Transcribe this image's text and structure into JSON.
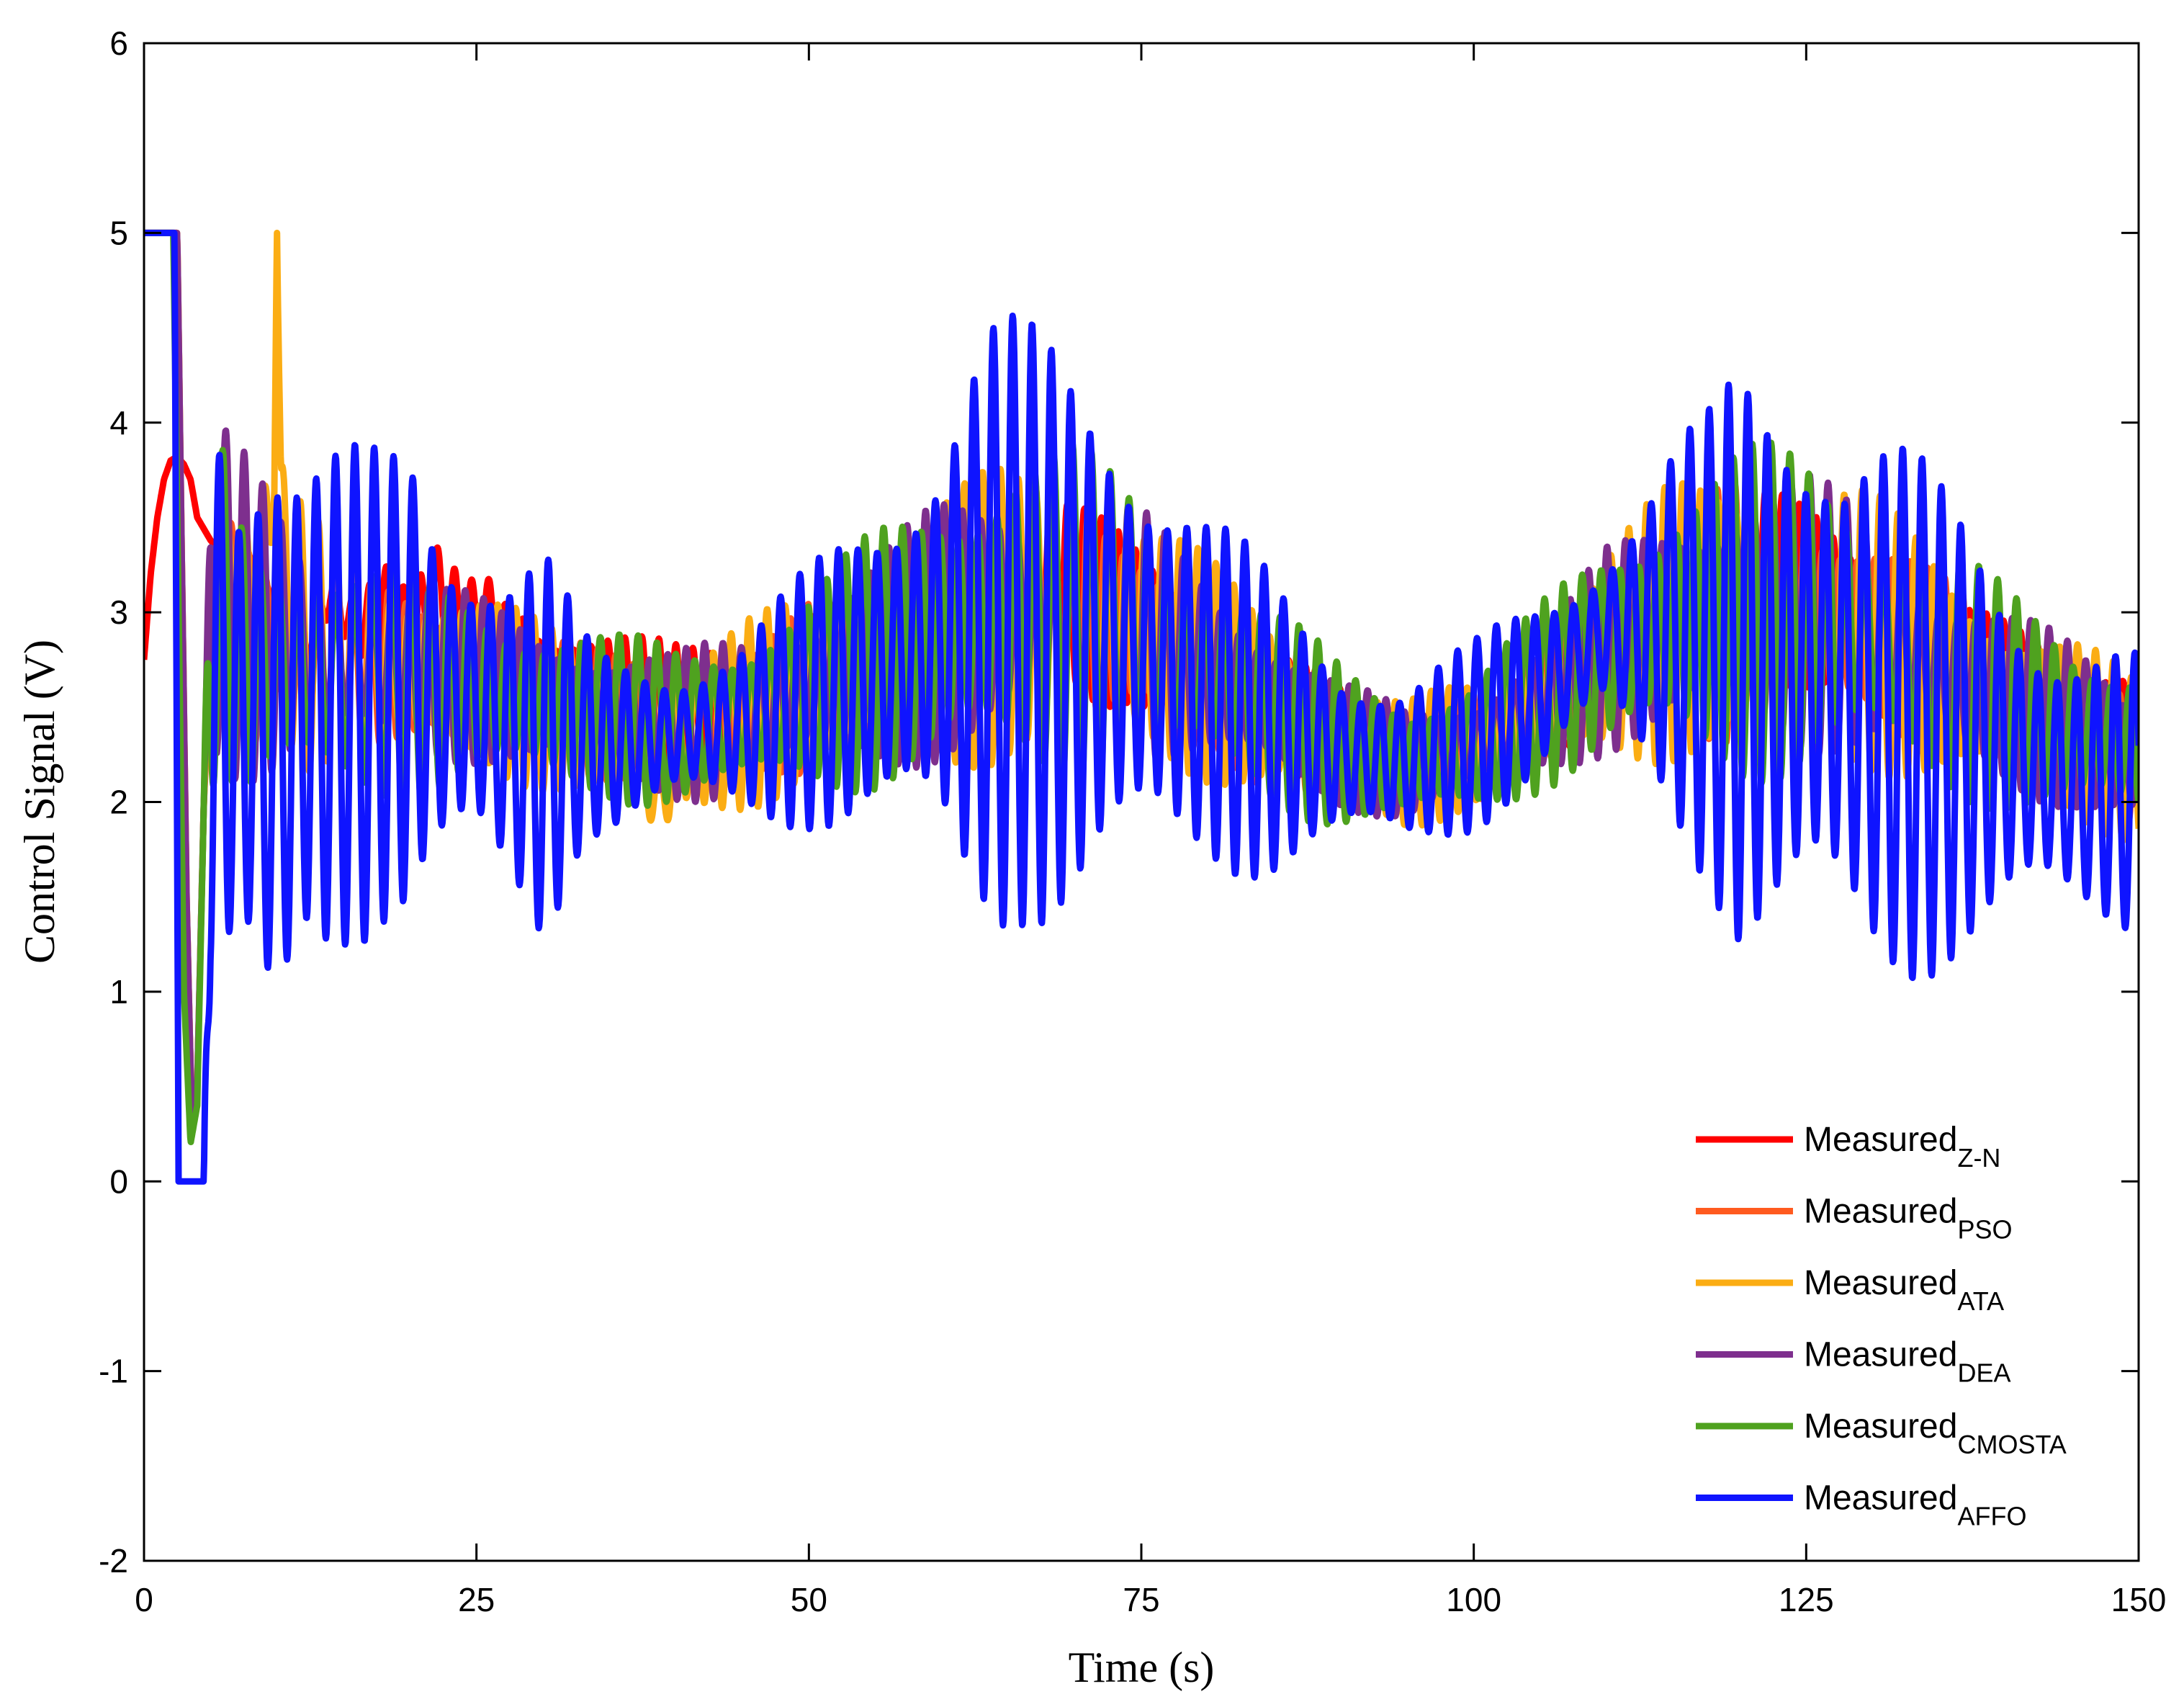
{
  "chart_data": {
    "type": "line",
    "xlabel": "Time (s)",
    "ylabel": "Control Signal (V)",
    "xlim": [
      0,
      150
    ],
    "ylim": [
      -2,
      6
    ],
    "x_ticks": [
      0,
      25,
      50,
      75,
      100,
      125,
      150
    ],
    "y_ticks": [
      -2,
      -1,
      0,
      1,
      2,
      3,
      4,
      5,
      6
    ],
    "grid": false,
    "legend_position": "bottom-right",
    "series": [
      {
        "name": "Measured",
        "subscript": "Z-N",
        "color": "#ff0000",
        "x": [
          0,
          0.5,
          1,
          1.5,
          2,
          2.5,
          3,
          3.5,
          4,
          5,
          6,
          7,
          8,
          9,
          10,
          11,
          12,
          14,
          16,
          18,
          20,
          22,
          24,
          26,
          28,
          29,
          30,
          35,
          40,
          45,
          50,
          55,
          60,
          62,
          64,
          66,
          68,
          70,
          72,
          74,
          76,
          80,
          85,
          90,
          95,
          100,
          105,
          110,
          115,
          120,
          122,
          124,
          126,
          128,
          130,
          135,
          140,
          145,
          150
        ],
        "y": [
          2.75,
          3.2,
          3.5,
          3.7,
          3.8,
          3.82,
          3.78,
          3.7,
          3.5,
          3.38,
          3.3,
          3.32,
          3.25,
          3.1,
          2.95,
          3.05,
          2.8,
          3.1,
          2.9,
          3.05,
          2.85,
          3.1,
          2.95,
          3.0,
          2.85,
          2.9,
          2.7,
          2.6,
          2.5,
          2.55,
          2.7,
          2.8,
          3.0,
          3.1,
          3.2,
          3.25,
          3.2,
          3.1,
          3.0,
          2.95,
          2.85,
          2.7,
          2.5,
          2.3,
          2.2,
          2.25,
          2.5,
          2.8,
          3.0,
          3.1,
          3.15,
          3.1,
          3.05,
          3.0,
          2.9,
          2.75,
          2.6,
          2.45,
          2.5
        ],
        "amp": [
          0,
          0,
          0,
          0,
          0,
          0,
          0,
          0,
          0,
          0,
          0,
          0,
          0.05,
          0.1,
          0.15,
          0.15,
          0.2,
          0.2,
          0.22,
          0.25,
          0.25,
          0.25,
          0.25,
          0.25,
          0.2,
          0.15,
          0.2,
          0.3,
          0.35,
          0.35,
          0.4,
          0.4,
          0.45,
          0.5,
          0.5,
          0.5,
          0.5,
          0.5,
          0.5,
          0.45,
          0.45,
          0.4,
          0.35,
          0.3,
          0.25,
          0.25,
          0.3,
          0.4,
          0.45,
          0.5,
          0.5,
          0.5,
          0.5,
          0.45,
          0.45,
          0.4,
          0.35,
          0.3,
          0.3
        ]
      },
      {
        "name": "Measured",
        "subscript": "PSO",
        "color": "#ff5a1f",
        "x": [
          0,
          2.5,
          2.8,
          3.2,
          3.6,
          4,
          4.5,
          5,
          6,
          7,
          8,
          9,
          10,
          12,
          15,
          20,
          25,
          30,
          35,
          40,
          45,
          50,
          55,
          60,
          65,
          70,
          75,
          80,
          85,
          90,
          95,
          100,
          105,
          110,
          115,
          120,
          125,
          130,
          135,
          140,
          145,
          150
        ],
        "y": [
          5,
          5,
          3.5,
          1.5,
          0.3,
          0.5,
          2.0,
          3.0,
          3.2,
          3.1,
          3.0,
          2.9,
          2.85,
          2.8,
          2.75,
          2.7,
          2.65,
          2.55,
          2.45,
          2.4,
          2.45,
          2.6,
          2.75,
          2.9,
          3.0,
          3.0,
          2.9,
          2.7,
          2.5,
          2.3,
          2.2,
          2.3,
          2.5,
          2.8,
          2.95,
          3.0,
          3.0,
          2.9,
          2.7,
          2.55,
          2.4,
          2.2
        ],
        "amp": [
          0,
          0,
          0,
          0,
          0,
          0,
          0,
          0.4,
          0.6,
          0.6,
          0.6,
          0.55,
          0.5,
          0.5,
          0.45,
          0.4,
          0.38,
          0.35,
          0.35,
          0.35,
          0.4,
          0.45,
          0.55,
          0.65,
          0.7,
          0.65,
          0.6,
          0.5,
          0.45,
          0.35,
          0.3,
          0.3,
          0.4,
          0.5,
          0.6,
          0.7,
          0.7,
          0.6,
          0.5,
          0.45,
          0.4,
          0.4
        ]
      },
      {
        "name": "Measured",
        "subscript": "ATA",
        "color": "#fbad14",
        "x": [
          0,
          2.5,
          2.8,
          3.2,
          3.6,
          4,
          4.5,
          5,
          6,
          7,
          8,
          9,
          9.8,
          10,
          10.3,
          11,
          12,
          15,
          20,
          25,
          30,
          35,
          39,
          40,
          45,
          50,
          55,
          60,
          65,
          70,
          75,
          80,
          85,
          90,
          95,
          100,
          105,
          110,
          115,
          120,
          125,
          130,
          135,
          140,
          145,
          150
        ],
        "y": [
          5,
          5,
          3.5,
          1.5,
          0.3,
          0.5,
          2.0,
          3.0,
          3.0,
          2.9,
          2.85,
          3.0,
          3.9,
          5.0,
          3.5,
          3.0,
          2.85,
          2.8,
          2.7,
          2.65,
          2.5,
          2.4,
          2.0,
          2.3,
          2.45,
          2.6,
          2.75,
          2.9,
          3.0,
          3.0,
          2.9,
          2.7,
          2.5,
          2.3,
          2.2,
          2.3,
          2.5,
          2.8,
          2.95,
          3.0,
          3.0,
          2.9,
          2.7,
          2.5,
          2.4,
          2.2
        ],
        "amp": [
          0,
          0,
          0,
          0,
          0,
          0,
          0,
          0.5,
          0.7,
          0.75,
          0.75,
          0.7,
          0.3,
          0,
          0.3,
          0.7,
          0.7,
          0.6,
          0.55,
          0.5,
          0.45,
          0.45,
          0.35,
          0.45,
          0.5,
          0.55,
          0.6,
          0.75,
          0.8,
          0.8,
          0.7,
          0.6,
          0.5,
          0.4,
          0.35,
          0.35,
          0.45,
          0.6,
          0.75,
          0.85,
          0.85,
          0.75,
          0.65,
          0.55,
          0.5,
          0.45
        ]
      },
      {
        "name": "Measured",
        "subscript": "DEA",
        "color": "#7e2f8e",
        "x": [
          0,
          2.5,
          2.8,
          3.2,
          3.6,
          4,
          4.5,
          5,
          6,
          7,
          8,
          9,
          10,
          12,
          15,
          20,
          25,
          30,
          35,
          40,
          45,
          50,
          55,
          60,
          65,
          70,
          75,
          80,
          85,
          90,
          95,
          100,
          105,
          110,
          115,
          120,
          125,
          130,
          135,
          140,
          145,
          150
        ],
        "y": [
          5,
          5,
          3.5,
          1.5,
          0.3,
          0.5,
          2.0,
          3.0,
          3.1,
          3.0,
          2.95,
          2.9,
          2.85,
          2.8,
          2.75,
          2.7,
          2.65,
          2.55,
          2.45,
          2.4,
          2.45,
          2.6,
          2.75,
          2.9,
          3.0,
          3.0,
          2.9,
          2.7,
          2.5,
          2.3,
          2.2,
          2.3,
          2.5,
          2.8,
          2.95,
          3.0,
          3.0,
          2.9,
          2.7,
          2.55,
          2.4,
          2.2
        ],
        "amp": [
          0,
          0,
          0,
          0,
          0,
          0,
          0,
          0.8,
          0.9,
          0.9,
          0.85,
          0.8,
          0.75,
          0.6,
          0.55,
          0.5,
          0.45,
          0.4,
          0.4,
          0.4,
          0.45,
          0.5,
          0.6,
          0.7,
          0.75,
          0.7,
          0.65,
          0.55,
          0.45,
          0.35,
          0.3,
          0.3,
          0.4,
          0.55,
          0.65,
          0.75,
          0.75,
          0.65,
          0.55,
          0.5,
          0.45,
          0.4
        ]
      },
      {
        "name": "Measured",
        "subscript": "CMOSTA",
        "color": "#4fa21f",
        "x": [
          0,
          2.2,
          2.6,
          3.0,
          3.5,
          4,
          4.5,
          5,
          6,
          7,
          8,
          9,
          10,
          12,
          15,
          20,
          25,
          30,
          35,
          40,
          45,
          50,
          55,
          60,
          65,
          70,
          75,
          80,
          85,
          90,
          95,
          100,
          105,
          110,
          115,
          120,
          125,
          130,
          135,
          140,
          145,
          150
        ],
        "y": [
          5,
          5,
          3.0,
          1.0,
          0.2,
          0.4,
          2.0,
          3.0,
          3.0,
          2.8,
          2.7,
          2.7,
          2.7,
          2.7,
          2.65,
          2.6,
          2.6,
          2.5,
          2.45,
          2.4,
          2.45,
          2.6,
          2.75,
          2.9,
          3.0,
          3.0,
          2.9,
          2.7,
          2.5,
          2.3,
          2.2,
          2.3,
          2.55,
          2.8,
          2.95,
          3.0,
          3.0,
          2.9,
          2.7,
          2.55,
          2.4,
          2.3
        ],
        "amp": [
          0,
          0,
          0,
          0,
          0,
          0,
          0,
          1.0,
          1.0,
          0.95,
          0.9,
          0.85,
          0.8,
          0.75,
          0.65,
          0.6,
          0.55,
          0.5,
          0.45,
          0.45,
          0.5,
          0.55,
          0.7,
          0.85,
          0.95,
          0.9,
          0.8,
          0.65,
          0.55,
          0.45,
          0.4,
          0.4,
          0.5,
          0.65,
          0.8,
          0.9,
          0.9,
          0.8,
          0.7,
          0.6,
          0.55,
          0.5
        ]
      },
      {
        "name": "Measured",
        "subscript": "AFFO",
        "color": "#0f14ff",
        "x": [
          0,
          2.3,
          2.6,
          4.5,
          5.0,
          6,
          7,
          8,
          9,
          10,
          11,
          12,
          15,
          18,
          20,
          22,
          25,
          28,
          30,
          33,
          35,
          40,
          45,
          50,
          55,
          60,
          62,
          64,
          66,
          68,
          70,
          72,
          74,
          76,
          80,
          85,
          90,
          95,
          100,
          105,
          110,
          115,
          118,
          120,
          122,
          124,
          126,
          128,
          130,
          135,
          140,
          145,
          150
        ],
        "y": [
          5,
          5,
          0,
          0,
          2.5,
          2.6,
          2.3,
          2.5,
          2.3,
          2.35,
          2.4,
          2.5,
          2.55,
          2.6,
          2.65,
          2.55,
          2.5,
          2.35,
          2.3,
          2.35,
          2.3,
          2.35,
          2.4,
          2.55,
          2.7,
          2.85,
          2.9,
          2.95,
          2.95,
          2.9,
          2.85,
          2.85,
          2.8,
          2.75,
          2.6,
          2.4,
          2.25,
          2.2,
          2.35,
          2.6,
          2.9,
          2.9,
          2.8,
          2.75,
          2.7,
          2.7,
          2.7,
          2.6,
          2.55,
          2.4,
          2.25,
          2.1,
          2.05
        ],
        "amp": [
          0,
          0,
          0,
          0,
          2.5,
          2.4,
          2.2,
          2.1,
          2.0,
          1.9,
          1.6,
          1.3,
          1.3,
          1.4,
          1.6,
          1.3,
          1.0,
          1.0,
          1.1,
          0.55,
          0.5,
          0.45,
          0.5,
          0.7,
          1.0,
          1.4,
          1.65,
          1.7,
          1.6,
          1.6,
          1.6,
          1.6,
          1.5,
          1.3,
          1.0,
          0.8,
          0.6,
          0.5,
          0.5,
          0.55,
          0.55,
          1.0,
          1.3,
          1.7,
          1.8,
          1.85,
          1.8,
          1.65,
          1.6,
          1.3,
          1.1,
          0.9,
          0.75
        ]
      }
    ]
  }
}
